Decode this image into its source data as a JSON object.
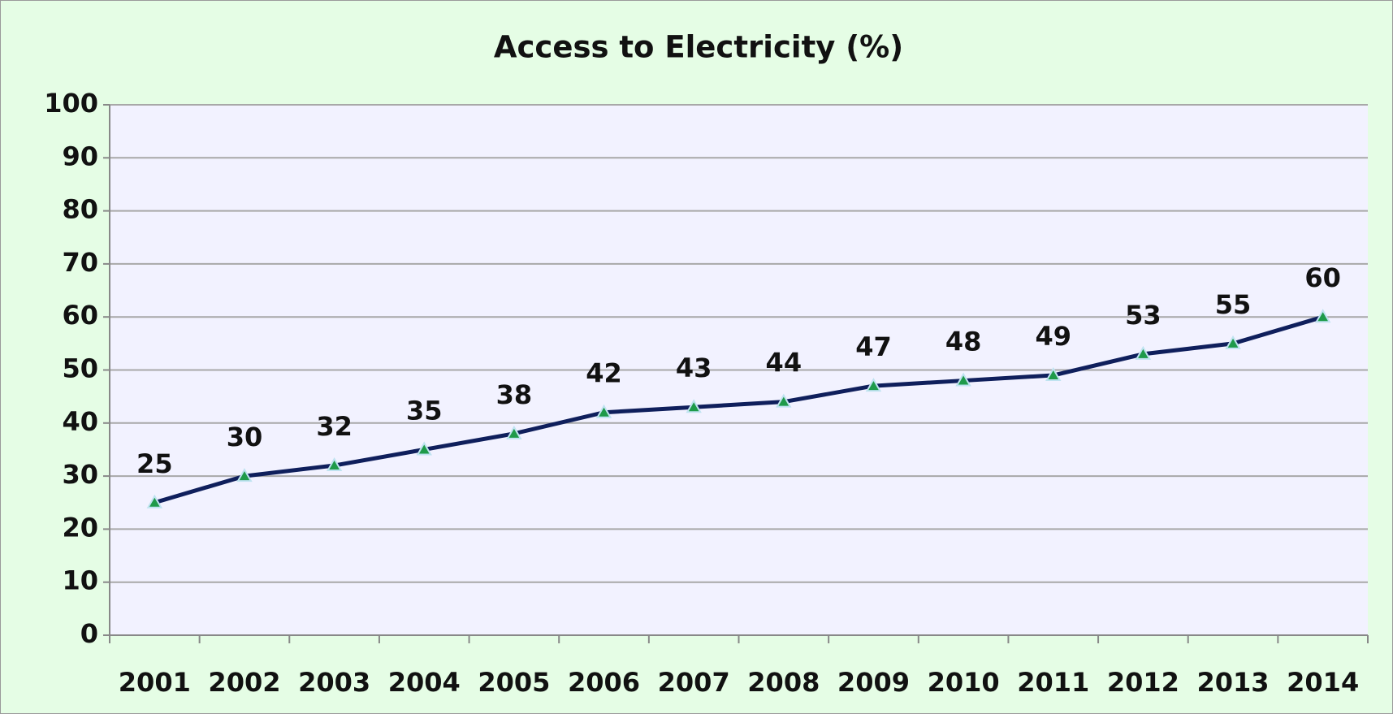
{
  "chart_data": {
    "type": "line",
    "title": "Access to Electricity (%)",
    "categories": [
      "2001",
      "2002",
      "2003",
      "2004",
      "2005",
      "2006",
      "2007",
      "2008",
      "2009",
      "2010",
      "2011",
      "2012",
      "2013",
      "2014"
    ],
    "values": [
      25,
      30,
      32,
      35,
      38,
      42,
      43,
      44,
      47,
      48,
      49,
      53,
      55,
      60
    ],
    "color": "#0f1f5c",
    "marker_color": "#1e9a4a",
    "ylim": [
      0,
      100
    ],
    "yticks": [
      0,
      10,
      20,
      30,
      40,
      50,
      60,
      70,
      80,
      90,
      100
    ],
    "grid": true
  }
}
